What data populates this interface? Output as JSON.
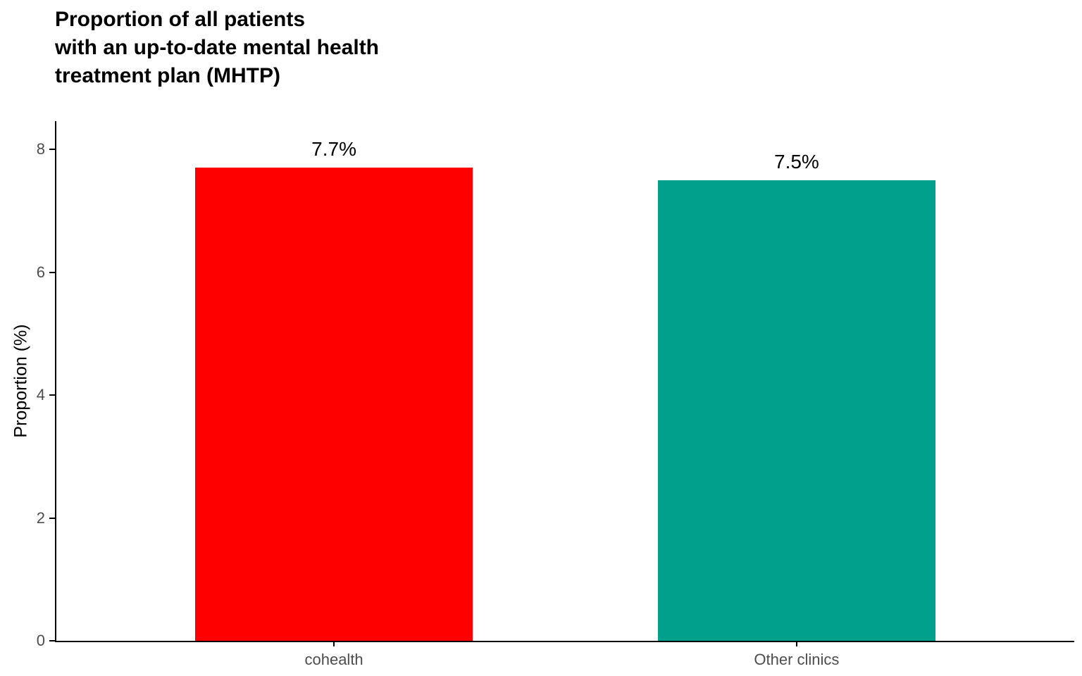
{
  "chart_data": {
    "type": "bar",
    "title": "Proportion of all patients\nwith an up-to-date mental health\ntreatment plan (MHTP)",
    "categories": [
      "cohealth",
      "Other clinics"
    ],
    "values": [
      7.7,
      7.5
    ],
    "value_labels": [
      "7.7%",
      "7.5%"
    ],
    "bar_colors": [
      "#ff0000",
      "#00a08c"
    ],
    "xlabel": "",
    "ylabel": "Proportion (%)",
    "yticks": [
      0,
      2,
      4,
      6,
      8
    ],
    "ylim": [
      0,
      8.46
    ],
    "grid": false,
    "legend": "none",
    "axis_line_color": "#000000",
    "tick_label_color": "#4d4d4d"
  }
}
